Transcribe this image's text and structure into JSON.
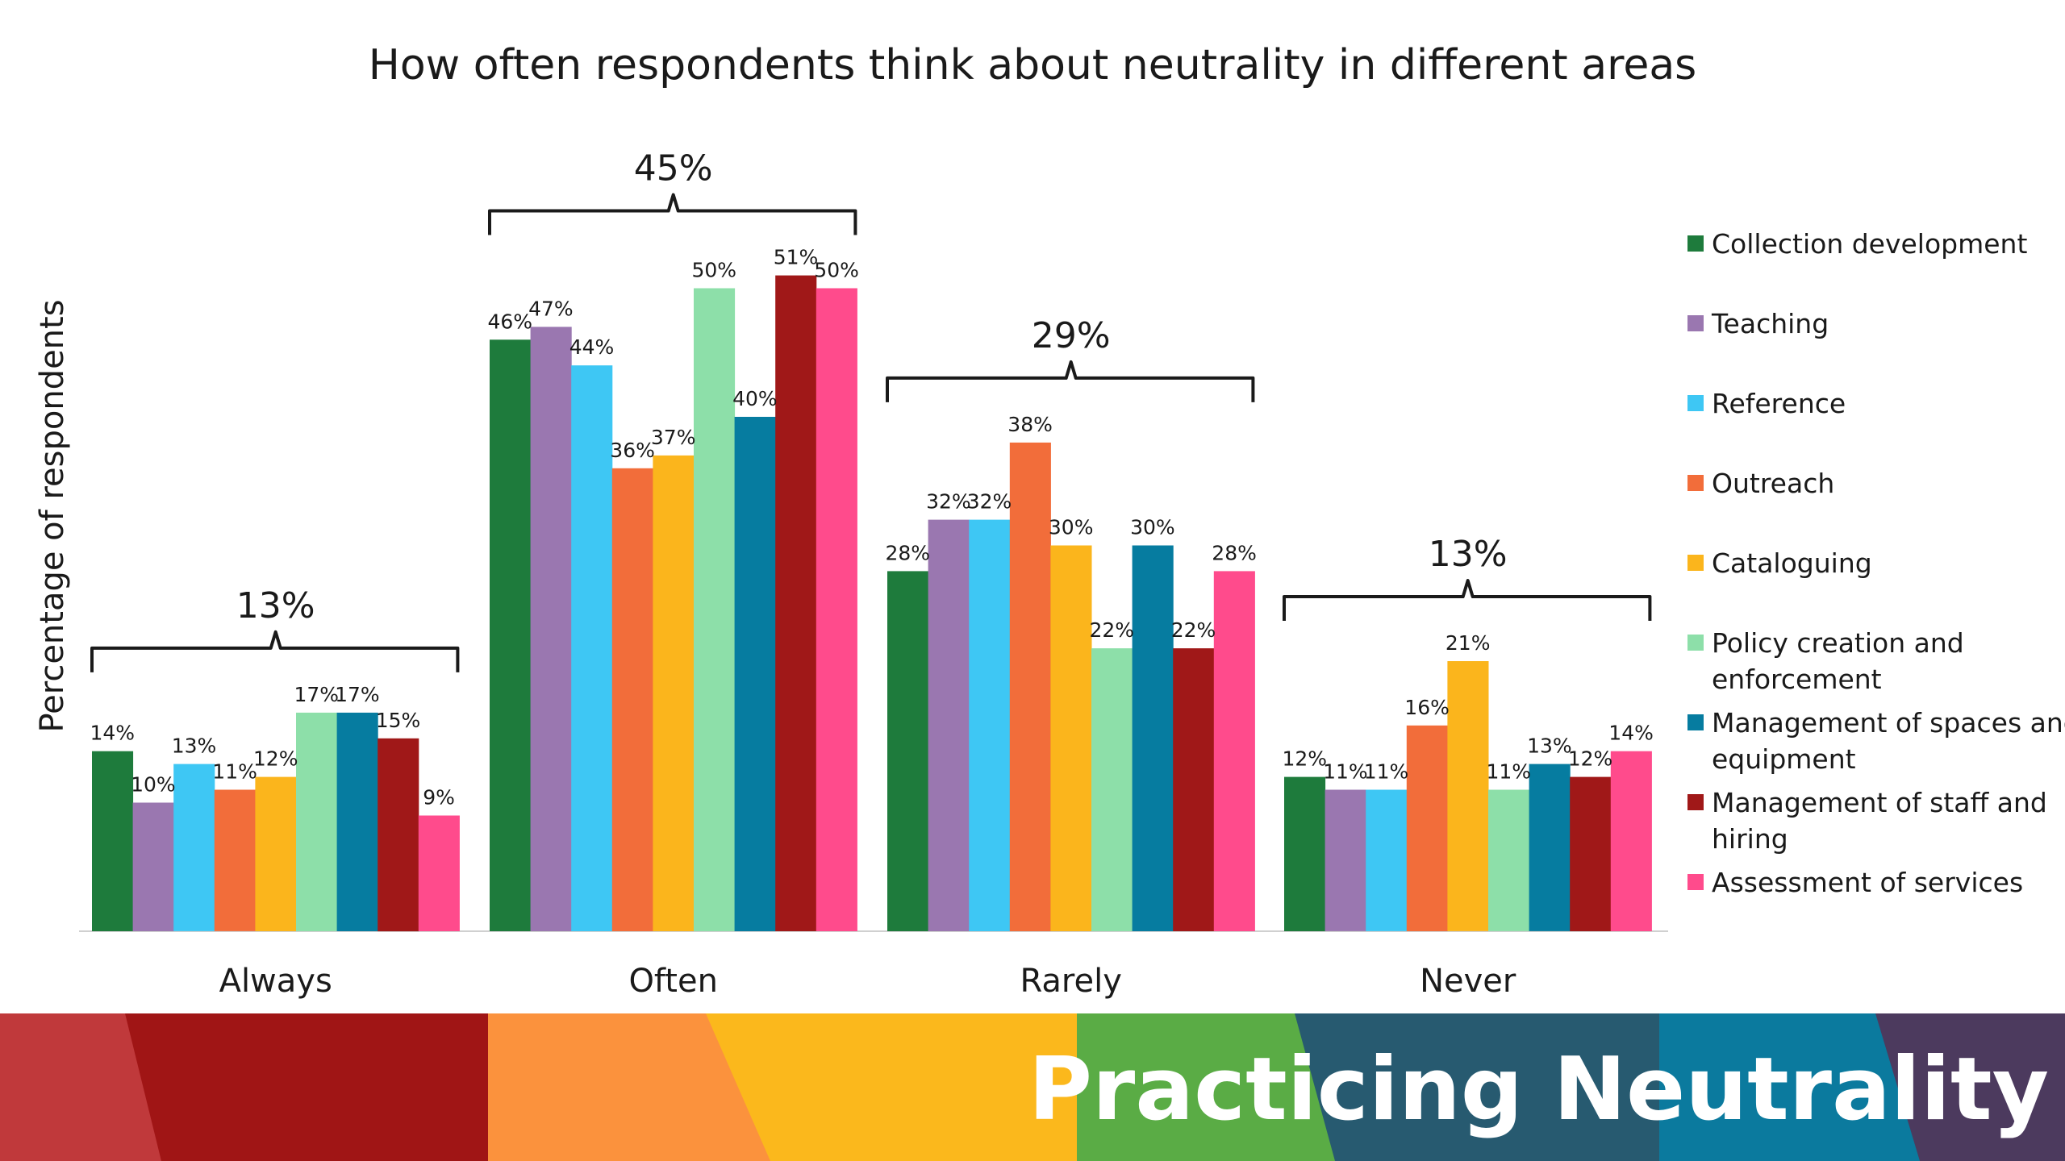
{
  "chart_data": {
    "type": "bar",
    "title": "How often respondents think about neutrality in different areas",
    "xlabel": "",
    "ylabel": "Percentage of respondents",
    "ylim": [
      0,
      55
    ],
    "grid": false,
    "legend_position": "right",
    "categories": [
      "Always",
      "Often",
      "Rarely",
      "Never"
    ],
    "series": [
      {
        "name": "Collection development",
        "color": "#1e7b3c",
        "values": [
          14,
          46,
          28,
          12
        ]
      },
      {
        "name": "Teaching",
        "color": "#9a77b0",
        "values": [
          10,
          47,
          32,
          11
        ]
      },
      {
        "name": "Reference",
        "color": "#3ec7f4",
        "values": [
          13,
          44,
          32,
          11
        ]
      },
      {
        "name": "Outreach",
        "color": "#f26d3a",
        "values": [
          11,
          36,
          38,
          16
        ]
      },
      {
        "name": "Cataloguing",
        "color": "#fbb51c",
        "values": [
          12,
          37,
          30,
          21
        ]
      },
      {
        "name": "Policy creation and enforcement",
        "color": "#8ddfa9",
        "values": [
          17,
          50,
          22,
          11
        ]
      },
      {
        "name": "Management of spaces and equipment",
        "color": "#067ca0",
        "values": [
          17,
          40,
          30,
          13
        ]
      },
      {
        "name": "Management of staff and hiring",
        "color": "#a01818",
        "values": [
          15,
          51,
          22,
          12
        ]
      },
      {
        "name": "Assessment of services",
        "color": "#ff4b8c",
        "values": [
          9,
          50,
          28,
          14
        ]
      }
    ],
    "group_totals": [
      "13%",
      "45%",
      "29%",
      "13%"
    ]
  },
  "footer": {
    "title": "Practicing Neutrality",
    "colors": [
      "#c0393b",
      "#a01515",
      "#fb923d",
      "#fbb81c",
      "#5aac45",
      "#275a70",
      "#0b7a9e",
      "#4c3a5e"
    ]
  }
}
